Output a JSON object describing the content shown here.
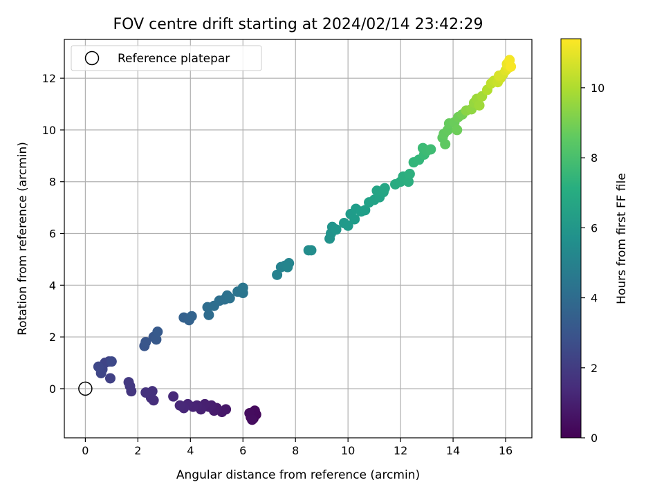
{
  "chart_data": {
    "type": "scatter",
    "title": "FOV centre drift starting at 2024/02/14 23:42:29",
    "xlabel": "Angular distance from reference (arcmin)",
    "ylabel": "Rotation from reference (arcmin)",
    "xlim": [
      -0.8,
      17.0
    ],
    "ylim": [
      -1.9,
      13.5
    ],
    "xticks": [
      0,
      2,
      4,
      6,
      8,
      10,
      12,
      14,
      16
    ],
    "yticks": [
      0,
      2,
      4,
      6,
      8,
      10,
      12
    ],
    "grid": true,
    "legend": {
      "placement": "top-left",
      "entries": [
        "Reference platepar"
      ]
    },
    "reference_point": {
      "x": 0,
      "y": 0,
      "label": "Reference platepar"
    },
    "colorbar": {
      "label": "Hours from first FF file",
      "min": 0,
      "max": 11.4,
      "ticks": [
        0,
        2,
        4,
        6,
        8,
        10
      ],
      "colormap": "viridis"
    },
    "points": [
      {
        "x": 6.4,
        "y": -1.15,
        "t": 0.1
      },
      {
        "x": 6.3,
        "y": -1.1,
        "t": 0.2
      },
      {
        "x": 6.5,
        "y": -1.0,
        "t": 0.25
      },
      {
        "x": 6.45,
        "y": -0.85,
        "t": 0.3
      },
      {
        "x": 6.25,
        "y": -0.95,
        "t": 0.35
      },
      {
        "x": 6.35,
        "y": -1.2,
        "t": 0.4
      },
      {
        "x": 5.35,
        "y": -0.8,
        "t": 0.7
      },
      {
        "x": 5.2,
        "y": -0.9,
        "t": 0.75
      },
      {
        "x": 5.0,
        "y": -0.75,
        "t": 0.8
      },
      {
        "x": 4.9,
        "y": -0.85,
        "t": 0.85
      },
      {
        "x": 4.8,
        "y": -0.65,
        "t": 0.9
      },
      {
        "x": 4.7,
        "y": -0.7,
        "t": 0.95
      },
      {
        "x": 4.55,
        "y": -0.6,
        "t": 1.0
      },
      {
        "x": 4.4,
        "y": -0.8,
        "t": 1.05
      },
      {
        "x": 4.25,
        "y": -0.65,
        "t": 1.1
      },
      {
        "x": 4.1,
        "y": -0.7,
        "t": 1.15
      },
      {
        "x": 3.9,
        "y": -0.6,
        "t": 1.2
      },
      {
        "x": 3.75,
        "y": -0.75,
        "t": 1.25
      },
      {
        "x": 3.6,
        "y": -0.65,
        "t": 1.3
      },
      {
        "x": 3.35,
        "y": -0.3,
        "t": 1.35
      },
      {
        "x": 2.6,
        "y": -0.45,
        "t": 1.5
      },
      {
        "x": 2.5,
        "y": -0.35,
        "t": 1.55
      },
      {
        "x": 2.55,
        "y": -0.1,
        "t": 1.6
      },
      {
        "x": 2.3,
        "y": -0.15,
        "t": 1.65
      },
      {
        "x": 1.75,
        "y": -0.1,
        "t": 1.8
      },
      {
        "x": 1.7,
        "y": 0.1,
        "t": 1.85
      },
      {
        "x": 1.65,
        "y": 0.25,
        "t": 1.9
      },
      {
        "x": 0.95,
        "y": 0.4,
        "t": 2.2
      },
      {
        "x": 0.9,
        "y": 1.05,
        "t": 2.25
      },
      {
        "x": 0.75,
        "y": 1.0,
        "t": 2.3
      },
      {
        "x": 0.65,
        "y": 0.75,
        "t": 2.35
      },
      {
        "x": 0.6,
        "y": 0.6,
        "t": 2.4
      },
      {
        "x": 0.5,
        "y": 0.85,
        "t": 2.45
      },
      {
        "x": 1.0,
        "y": 1.05,
        "t": 2.5
      },
      {
        "x": 2.25,
        "y": 1.65,
        "t": 3.0
      },
      {
        "x": 2.3,
        "y": 1.8,
        "t": 3.05
      },
      {
        "x": 2.6,
        "y": 2.0,
        "t": 3.1
      },
      {
        "x": 2.7,
        "y": 1.9,
        "t": 3.15
      },
      {
        "x": 2.75,
        "y": 2.2,
        "t": 3.2
      },
      {
        "x": 3.75,
        "y": 2.75,
        "t": 3.5
      },
      {
        "x": 3.95,
        "y": 2.65,
        "t": 3.55
      },
      {
        "x": 4.05,
        "y": 2.8,
        "t": 3.6
      },
      {
        "x": 4.7,
        "y": 2.85,
        "t": 4.0
      },
      {
        "x": 4.65,
        "y": 3.15,
        "t": 4.05
      },
      {
        "x": 4.9,
        "y": 3.2,
        "t": 4.1
      },
      {
        "x": 5.1,
        "y": 3.4,
        "t": 4.15
      },
      {
        "x": 5.3,
        "y": 3.45,
        "t": 4.2
      },
      {
        "x": 5.4,
        "y": 3.6,
        "t": 4.25
      },
      {
        "x": 5.5,
        "y": 3.5,
        "t": 4.3
      },
      {
        "x": 5.8,
        "y": 3.75,
        "t": 4.4
      },
      {
        "x": 6.0,
        "y": 3.7,
        "t": 4.45
      },
      {
        "x": 6.0,
        "y": 3.9,
        "t": 4.5
      },
      {
        "x": 7.3,
        "y": 4.4,
        "t": 5.0
      },
      {
        "x": 7.45,
        "y": 4.7,
        "t": 5.05
      },
      {
        "x": 7.6,
        "y": 4.75,
        "t": 5.1
      },
      {
        "x": 7.75,
        "y": 4.85,
        "t": 5.15
      },
      {
        "x": 7.7,
        "y": 4.7,
        "t": 5.2
      },
      {
        "x": 8.5,
        "y": 5.35,
        "t": 5.5
      },
      {
        "x": 8.6,
        "y": 5.35,
        "t": 5.55
      },
      {
        "x": 9.3,
        "y": 5.8,
        "t": 5.8
      },
      {
        "x": 9.35,
        "y": 6.0,
        "t": 5.85
      },
      {
        "x": 9.4,
        "y": 6.25,
        "t": 5.9
      },
      {
        "x": 9.55,
        "y": 6.15,
        "t": 5.95
      },
      {
        "x": 9.85,
        "y": 6.4,
        "t": 6.1
      },
      {
        "x": 10.0,
        "y": 6.3,
        "t": 6.15
      },
      {
        "x": 10.1,
        "y": 6.75,
        "t": 6.2
      },
      {
        "x": 10.25,
        "y": 6.55,
        "t": 6.25
      },
      {
        "x": 10.3,
        "y": 6.95,
        "t": 6.3
      },
      {
        "x": 10.5,
        "y": 6.85,
        "t": 6.35
      },
      {
        "x": 10.65,
        "y": 6.9,
        "t": 6.4
      },
      {
        "x": 10.8,
        "y": 7.2,
        "t": 6.5
      },
      {
        "x": 11.0,
        "y": 7.3,
        "t": 6.55
      },
      {
        "x": 11.2,
        "y": 7.4,
        "t": 6.6
      },
      {
        "x": 11.1,
        "y": 7.65,
        "t": 6.65
      },
      {
        "x": 11.35,
        "y": 7.6,
        "t": 6.7
      },
      {
        "x": 11.4,
        "y": 7.75,
        "t": 6.75
      },
      {
        "x": 11.8,
        "y": 7.9,
        "t": 7.0
      },
      {
        "x": 12.0,
        "y": 8.0,
        "t": 7.05
      },
      {
        "x": 12.1,
        "y": 8.2,
        "t": 7.1
      },
      {
        "x": 12.3,
        "y": 8.0,
        "t": 7.15
      },
      {
        "x": 12.35,
        "y": 8.3,
        "t": 7.2
      },
      {
        "x": 12.5,
        "y": 8.75,
        "t": 7.5
      },
      {
        "x": 12.7,
        "y": 8.85,
        "t": 7.55
      },
      {
        "x": 12.9,
        "y": 9.05,
        "t": 7.7
      },
      {
        "x": 12.85,
        "y": 9.3,
        "t": 7.75
      },
      {
        "x": 13.0,
        "y": 9.2,
        "t": 7.8
      },
      {
        "x": 13.15,
        "y": 9.25,
        "t": 7.85
      },
      {
        "x": 13.6,
        "y": 9.7,
        "t": 8.5
      },
      {
        "x": 13.7,
        "y": 9.45,
        "t": 8.55
      },
      {
        "x": 13.65,
        "y": 9.85,
        "t": 8.6
      },
      {
        "x": 13.8,
        "y": 10.0,
        "t": 8.65
      },
      {
        "x": 13.85,
        "y": 10.25,
        "t": 8.7
      },
      {
        "x": 14.05,
        "y": 10.3,
        "t": 8.8
      },
      {
        "x": 14.15,
        "y": 10.0,
        "t": 8.85
      },
      {
        "x": 14.2,
        "y": 10.5,
        "t": 8.9
      },
      {
        "x": 14.35,
        "y": 10.6,
        "t": 9.0
      },
      {
        "x": 14.5,
        "y": 10.75,
        "t": 9.4
      },
      {
        "x": 14.7,
        "y": 10.8,
        "t": 9.5
      },
      {
        "x": 14.8,
        "y": 11.05,
        "t": 9.6
      },
      {
        "x": 14.9,
        "y": 11.2,
        "t": 9.7
      },
      {
        "x": 15.0,
        "y": 10.95,
        "t": 9.75
      },
      {
        "x": 15.1,
        "y": 11.3,
        "t": 9.85
      },
      {
        "x": 15.3,
        "y": 11.55,
        "t": 10.1
      },
      {
        "x": 15.45,
        "y": 11.8,
        "t": 10.3
      },
      {
        "x": 15.55,
        "y": 11.9,
        "t": 10.4
      },
      {
        "x": 15.7,
        "y": 11.85,
        "t": 10.5
      },
      {
        "x": 15.8,
        "y": 12.0,
        "t": 10.6
      },
      {
        "x": 15.9,
        "y": 12.15,
        "t": 10.7
      },
      {
        "x": 15.75,
        "y": 12.1,
        "t": 10.75
      },
      {
        "x": 16.0,
        "y": 12.3,
        "t": 10.9
      },
      {
        "x": 16.1,
        "y": 12.4,
        "t": 11.0
      },
      {
        "x": 16.05,
        "y": 12.55,
        "t": 11.1
      },
      {
        "x": 16.15,
        "y": 12.7,
        "t": 11.25
      },
      {
        "x": 16.2,
        "y": 12.45,
        "t": 11.3
      }
    ]
  }
}
